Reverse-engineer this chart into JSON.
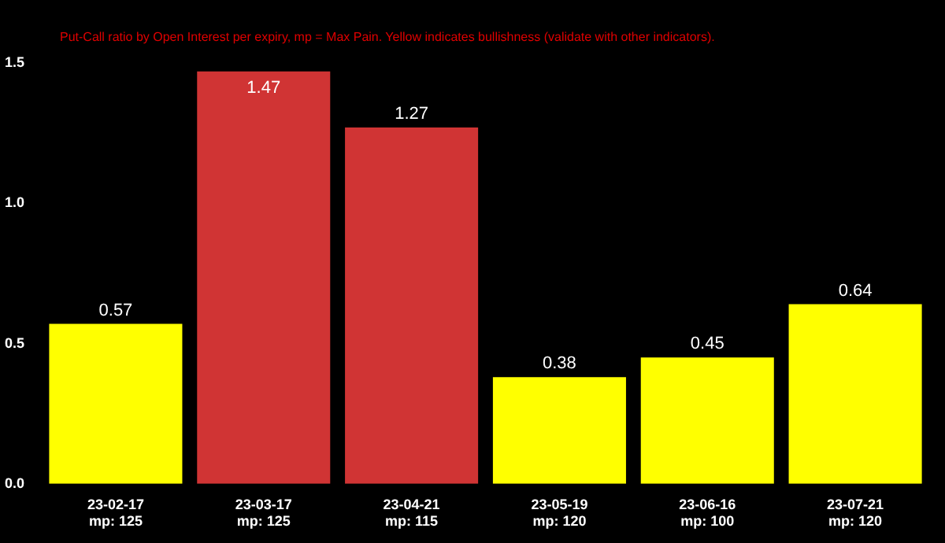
{
  "chart_data": {
    "type": "bar",
    "subtitle": "Put-Call ratio by Open Interest per expiry, mp = Max Pain. Yellow indicates bullishness (validate with other indicators).",
    "categories": [
      "23-02-17\nmp: 125",
      "23-03-17\nmp: 125",
      "23-04-21\nmp: 115",
      "23-05-19\nmp: 120",
      "23-06-16\nmp: 100",
      "23-07-21\nmp: 120"
    ],
    "values": [
      0.57,
      1.47,
      1.27,
      0.38,
      0.45,
      0.64
    ],
    "colors": [
      "#ffff00",
      "#d03434",
      "#d03434",
      "#ffff00",
      "#ffff00",
      "#ffff00"
    ],
    "ylim": [
      0,
      1.5
    ],
    "yticks": [
      {
        "value": 0,
        "label": "0.0"
      },
      {
        "value": 0.5,
        "label": "0.5"
      },
      {
        "value": 1,
        "label": "1.0"
      },
      {
        "value": 1.5,
        "label": "1.5"
      }
    ],
    "data_labels": true,
    "grid": false,
    "legend": false
  }
}
